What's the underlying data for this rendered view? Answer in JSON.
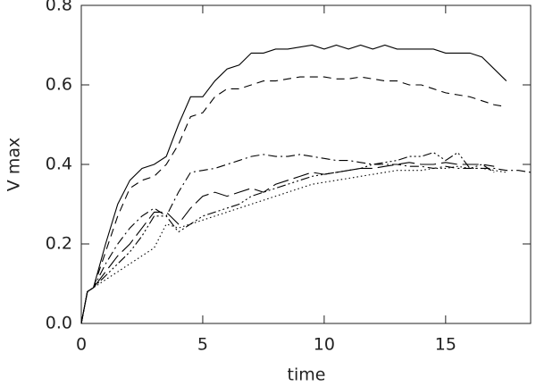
{
  "chart_data": {
    "type": "line",
    "xlabel": "time",
    "ylabel": "V max",
    "x": [
      0,
      0.25,
      0.5,
      1,
      1.5,
      2,
      2.5,
      3,
      3.5,
      4,
      4.5,
      5,
      5.5,
      6,
      6.5,
      7,
      7.5,
      8,
      8.5,
      9,
      9.5,
      10,
      10.5,
      11,
      11.5,
      12,
      12.5,
      13,
      13.5,
      14,
      14.5,
      15,
      15.5,
      16,
      16.5,
      17,
      17.5,
      18,
      18.5
    ],
    "series": [
      {
        "color": "#000000",
        "dash": "none",
        "values": [
          0,
          0.08,
          0.09,
          0.2,
          0.3,
          0.36,
          0.39,
          0.4,
          0.42,
          0.5,
          0.57,
          0.57,
          0.61,
          0.64,
          0.65,
          0.68,
          0.68,
          0.69,
          0.69,
          0.695,
          0.7,
          0.69,
          0.7,
          0.69,
          0.7,
          0.69,
          0.7,
          0.69,
          0.69,
          0.69,
          0.69,
          0.68,
          0.68,
          0.68,
          0.67,
          0.64,
          0.61,
          null,
          null
        ]
      },
      {
        "color": "#000000",
        "dash": "9,6",
        "values": [
          0,
          0.08,
          0.09,
          0.18,
          0.27,
          0.34,
          0.36,
          0.37,
          0.4,
          0.45,
          0.52,
          0.53,
          0.57,
          0.59,
          0.59,
          0.6,
          0.61,
          0.61,
          0.615,
          0.62,
          0.62,
          0.62,
          0.615,
          0.615,
          0.62,
          0.615,
          0.61,
          0.61,
          0.6,
          0.6,
          0.59,
          0.58,
          0.575,
          0.57,
          0.56,
          0.55,
          0.545,
          null,
          null
        ]
      },
      {
        "color": "#000000",
        "dash": "10,4,2,4",
        "values": [
          0,
          0.08,
          0.09,
          0.15,
          0.2,
          0.24,
          0.27,
          0.29,
          0.27,
          0.33,
          0.38,
          0.385,
          0.39,
          0.4,
          0.41,
          0.42,
          0.425,
          0.42,
          0.42,
          0.425,
          0.42,
          0.415,
          0.41,
          0.41,
          0.405,
          0.4,
          0.4,
          0.4,
          0.395,
          0.395,
          0.39,
          0.395,
          0.39,
          0.39,
          0.39,
          0.39,
          0.385,
          0.385,
          0.38
        ]
      },
      {
        "color": "#000000",
        "dash": "18,6",
        "values": [
          0,
          0.08,
          0.09,
          0.13,
          0.17,
          0.2,
          0.24,
          0.28,
          0.28,
          0.25,
          0.29,
          0.32,
          0.33,
          0.32,
          0.33,
          0.34,
          0.33,
          0.35,
          0.36,
          0.37,
          0.38,
          0.375,
          0.38,
          0.385,
          0.39,
          0.39,
          0.395,
          0.4,
          0.405,
          0.4,
          0.4,
          0.405,
          0.4,
          0.4,
          0.4,
          0.395,
          null,
          null,
          null
        ]
      },
      {
        "color": "#000000",
        "dash": "10,3,2,3,2,3,2,3",
        "values": [
          0,
          0.08,
          0.09,
          0.12,
          0.15,
          0.18,
          0.22,
          0.27,
          0.27,
          0.23,
          0.25,
          0.27,
          0.28,
          0.29,
          0.3,
          0.32,
          0.33,
          0.34,
          0.35,
          0.36,
          0.37,
          0.375,
          0.38,
          0.385,
          0.39,
          0.4,
          0.405,
          0.41,
          0.42,
          0.42,
          0.43,
          0.41,
          0.43,
          0.39,
          0.4,
          0.38,
          null,
          null,
          null
        ]
      },
      {
        "color": "#000000",
        "dash": "1.5,3",
        "values": [
          0,
          0.08,
          0.09,
          0.11,
          0.13,
          0.15,
          0.17,
          0.19,
          0.25,
          0.24,
          0.25,
          0.26,
          0.27,
          0.28,
          0.29,
          0.3,
          0.31,
          0.32,
          0.33,
          0.34,
          0.35,
          0.355,
          0.36,
          0.365,
          0.37,
          0.375,
          0.38,
          0.385,
          0.385,
          0.385,
          0.39,
          0.39,
          0.395,
          0.39,
          0.39,
          0.385,
          0.38,
          null,
          null
        ]
      }
    ],
    "xlim": [
      0,
      18.5
    ],
    "xticks": [
      0,
      5,
      10,
      15
    ],
    "ylim": [
      0,
      0.8
    ],
    "yticks": [
      {
        "value": 0,
        "label": "0.0"
      },
      0.2,
      0.4,
      0.6,
      0.8
    ]
  }
}
